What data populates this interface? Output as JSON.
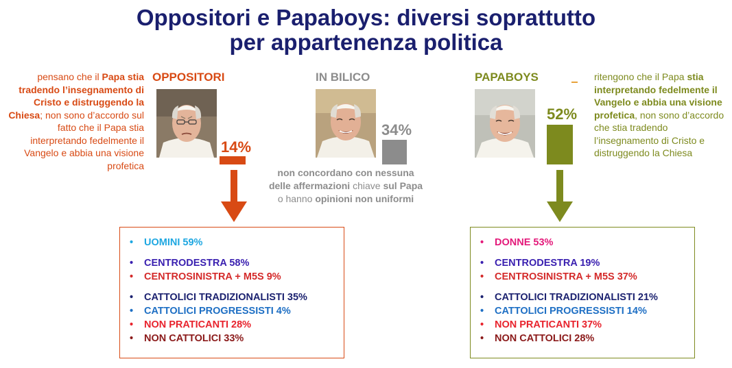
{
  "title_line1": "Oppositori e Papaboys: diversi soprattutto",
  "title_line2": "per appartenenza politica",
  "colors": {
    "title": "#1a1f6e",
    "oppositori": "#d84a14",
    "in_bilico": "#8c8c8c",
    "papaboys": "#7d8a1e"
  },
  "oppositori": {
    "header": "OPPOSITORI",
    "desc_1": "pensano che il ",
    "desc_2": "Papa stia tradendo l’insegnamento di Cristo e distruggendo la Chiesa",
    "desc_3": "; non sono d’accordo sul fatto che il Papa stia interpretando fedelmente il Vangelo e abbia una visione profetica",
    "percent_label": "14%",
    "items": [
      {
        "text": "UOMINI 59%",
        "color": "#1ea7e1"
      },
      {
        "text": "CENTRODESTRA 58%",
        "color": "#3a20b0"
      },
      {
        "text": "CENTROSINISTRA + M5S 9%",
        "color": "#d42a2a"
      },
      {
        "text": "CATTOLICI TRADIZIONALISTI 35%",
        "color": "#1c2270"
      },
      {
        "text": "CATTOLICI PROGRESSISTI 4%",
        "color": "#1e6fc4"
      },
      {
        "text": "NON PRATICANTI 28%",
        "color": "#e8232d"
      },
      {
        "text": "NON CATTOLICI 33%",
        "color": "#8b1a1a"
      }
    ]
  },
  "in_bilico": {
    "header": "IN BILICO",
    "percent_label": "34%",
    "desc_1": "non concordano con nessuna delle ",
    "desc_2": "affermazioni",
    "desc_3": " chiave ",
    "desc_4": "sul Papa",
    "desc_5": " o hanno ",
    "desc_6": "opinioni non uniformi"
  },
  "papaboys": {
    "header": "PAPABOYS",
    "desc_1": "ritengono che il Papa ",
    "desc_2": "stia interpretando fedelmente il Vangelo e abbia una visione profetica",
    "desc_3": ", non sono d’accordo che stia tradendo l’insegnamento di Cristo e distruggendo la Chiesa",
    "percent_label": "52%",
    "items": [
      {
        "text": "DONNE 53%",
        "color": "#e3197a"
      },
      {
        "text": "CENTRODESTRA 19%",
        "color": "#3a20b0"
      },
      {
        "text": "CENTROSINISTRA + M5S 37%",
        "color": "#d42a2a"
      },
      {
        "text": "CATTOLICI TRADIZIONALISTI 21%",
        "color": "#1c2270"
      },
      {
        "text": "CATTOLICI PROGRESSISTI 14%",
        "color": "#1e6fc4"
      },
      {
        "text": "NON PRATICANTI 37%",
        "color": "#e8232d"
      },
      {
        "text": "NON CATTOLICI 28%",
        "color": "#8b1a1a"
      }
    ]
  },
  "chart_data": {
    "type": "bar",
    "categories": [
      "OPPOSITORI",
      "IN BILICO",
      "PAPABOYS"
    ],
    "values": [
      14,
      34,
      52
    ],
    "unit": "%",
    "colors": [
      "#d84a14",
      "#8c8c8c",
      "#7d8a1e"
    ]
  }
}
